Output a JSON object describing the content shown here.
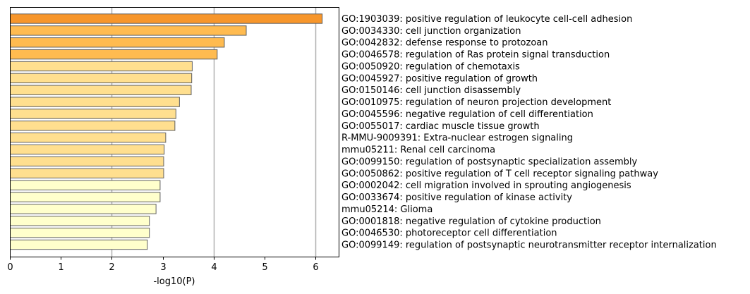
{
  "chart_data": {
    "type": "bar",
    "orientation": "horizontal",
    "xlabel": "-log10(P)",
    "ylabel": "",
    "title": "",
    "xlim": [
      0,
      6.45
    ],
    "xticks": [
      0,
      1,
      2,
      3,
      4,
      5,
      6
    ],
    "grid_x": [
      2,
      4,
      6
    ],
    "grid": "vertical lines at x = 2, 4, 6",
    "legend": "none",
    "label_position": "right of plot",
    "categories": [
      "GO:1903039: positive regulation of leukocyte cell-cell adhesion",
      "GO:0034330: cell junction organization",
      "GO:0042832: defense response to protozoan",
      "GO:0046578: regulation of Ras protein signal transduction",
      "GO:0050920: regulation of chemotaxis",
      "GO:0045927: positive regulation of growth",
      "GO:0150146: cell junction disassembly",
      "GO:0010975: regulation of neuron projection development",
      "GO:0045596: negative regulation of cell differentiation",
      "GO:0055017: cardiac muscle tissue growth",
      "R-MMU-9009391: Extra-nuclear estrogen signaling",
      "mmu05211: Renal cell carcinoma",
      "GO:0099150: regulation of postsynaptic specialization assembly",
      "GO:0050862: positive regulation of T cell receptor signaling pathway",
      "GO:0002042: cell migration involved in sprouting angiogenesis",
      "GO:0033674: positive regulation of kinase activity",
      "mmu05214: Glioma",
      "GO:0001818: negative regulation of cytokine production",
      "GO:0046530: photoreceptor cell differentiation",
      "GO:0099149: regulation of postsynaptic neurotransmitter receptor internalization"
    ],
    "values": [
      6.12,
      4.63,
      4.2,
      4.06,
      3.57,
      3.56,
      3.55,
      3.32,
      3.25,
      3.23,
      3.05,
      3.02,
      3.01,
      3.01,
      2.94,
      2.94,
      2.86,
      2.73,
      2.73,
      2.69
    ],
    "colors": [
      "#F7962B",
      "#FFBB50",
      "#FFBB50",
      "#FFBB50",
      "#FFDF8F",
      "#FFDF8F",
      "#FFDF8F",
      "#FFDF8F",
      "#FFDF8F",
      "#FFDF8F",
      "#FFDF8F",
      "#FFDF8F",
      "#FFDF8F",
      "#FFDF8F",
      "#FFFFCC",
      "#FFFFCC",
      "#FFFFCC",
      "#FFFFCC",
      "#FFFFCC",
      "#FFFFCC"
    ],
    "bar_edge_color": "#5F5F5F",
    "grid_color": "#B0B0B0"
  }
}
